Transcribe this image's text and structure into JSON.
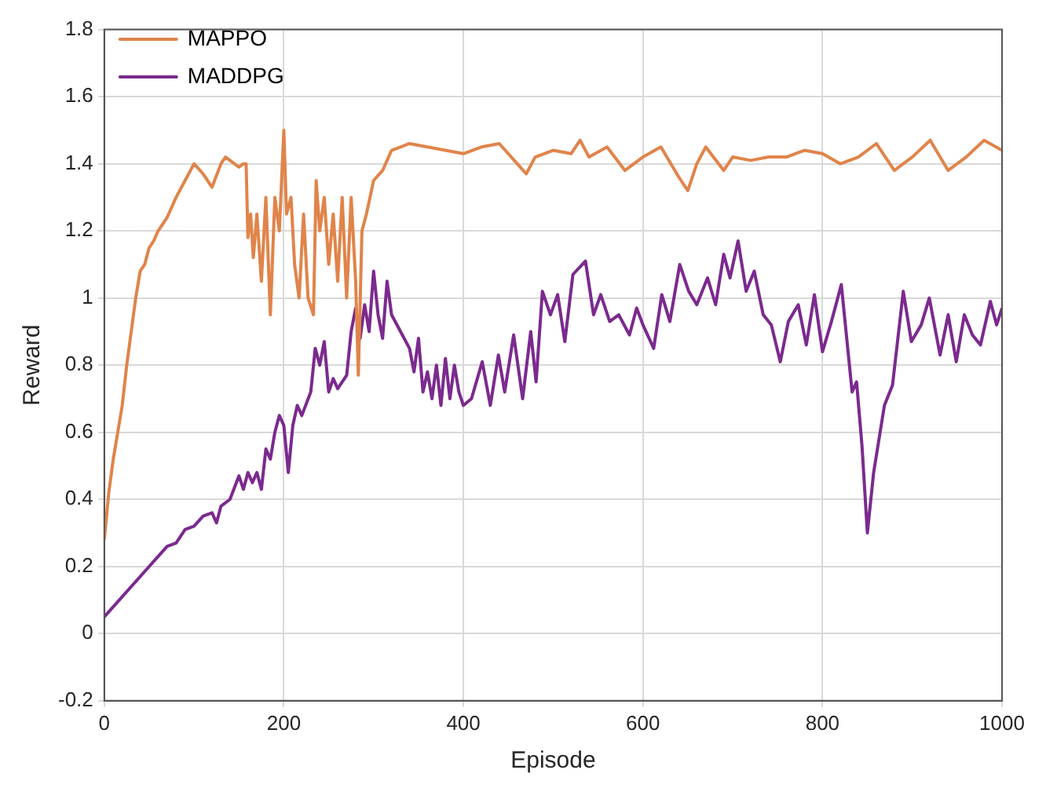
{
  "chart_data": {
    "type": "line",
    "xlabel": "Episode",
    "ylabel": "Reward",
    "xlim": [
      0,
      1000
    ],
    "xticks": [
      0,
      200,
      400,
      600,
      800,
      1000
    ],
    "ylim": [
      -0.2,
      1.8
    ],
    "yticks": [
      -0.2,
      0,
      0.2,
      0.4,
      0.6,
      0.8,
      1,
      1.2,
      1.4,
      1.6,
      1.8
    ],
    "grid": true,
    "legend": "top left",
    "marker": "none",
    "line_style": "solid",
    "series": [
      {
        "name": "MAPPO",
        "color": "#e0844a",
        "x": [
          0,
          5,
          10,
          15,
          20,
          25,
          30,
          35,
          40,
          45,
          50,
          55,
          60,
          70,
          80,
          90,
          100,
          110,
          120,
          130,
          135,
          145,
          150,
          155,
          158,
          160,
          163,
          166,
          170,
          175,
          180,
          185,
          190,
          195,
          200,
          203,
          208,
          212,
          217,
          222,
          227,
          233,
          236,
          240,
          245,
          250,
          255,
          260,
          265,
          270,
          275,
          280,
          283,
          287,
          292,
          300,
          310,
          320,
          340,
          360,
          380,
          400,
          420,
          440,
          460,
          470,
          480,
          500,
          520,
          530,
          540,
          560,
          580,
          600,
          620,
          640,
          650,
          660,
          670,
          690,
          700,
          720,
          740,
          760,
          780,
          800,
          820,
          840,
          860,
          880,
          900,
          920,
          940,
          960,
          980,
          1000
        ],
        "values": [
          0.28,
          0.42,
          0.52,
          0.6,
          0.68,
          0.8,
          0.9,
          1.0,
          1.08,
          1.1,
          1.15,
          1.17,
          1.2,
          1.24,
          1.3,
          1.35,
          1.4,
          1.37,
          1.33,
          1.4,
          1.42,
          1.4,
          1.39,
          1.4,
          1.4,
          1.18,
          1.25,
          1.12,
          1.25,
          1.05,
          1.3,
          0.95,
          1.3,
          1.2,
          1.5,
          1.25,
          1.3,
          1.1,
          1.0,
          1.25,
          1.0,
          0.95,
          1.35,
          1.2,
          1.3,
          1.1,
          1.25,
          1.05,
          1.3,
          1.0,
          1.3,
          1.05,
          0.77,
          1.2,
          1.25,
          1.35,
          1.38,
          1.44,
          1.46,
          1.45,
          1.44,
          1.43,
          1.45,
          1.46,
          1.4,
          1.37,
          1.42,
          1.44,
          1.43,
          1.47,
          1.42,
          1.45,
          1.38,
          1.42,
          1.45,
          1.36,
          1.32,
          1.4,
          1.45,
          1.38,
          1.42,
          1.41,
          1.42,
          1.42,
          1.44,
          1.43,
          1.4,
          1.42,
          1.46,
          1.38,
          1.42,
          1.47,
          1.38,
          1.42,
          1.47,
          1.44
        ]
      },
      {
        "name": "MADDPG",
        "color": "#7b2a8e",
        "x": [
          0,
          50,
          60,
          70,
          80,
          90,
          100,
          110,
          120,
          125,
          130,
          140,
          150,
          155,
          160,
          165,
          170,
          175,
          180,
          185,
          190,
          195,
          200,
          205,
          210,
          215,
          220,
          230,
          235,
          240,
          245,
          250,
          255,
          260,
          270,
          275,
          280,
          285,
          290,
          295,
          300,
          305,
          310,
          315,
          320,
          330,
          340,
          345,
          350,
          355,
          360,
          365,
          370,
          375,
          380,
          385,
          390,
          395,
          400,
          409,
          421,
          430,
          439,
          446,
          456,
          466,
          475,
          481,
          488,
          497,
          505,
          513,
          522,
          536,
          545,
          553,
          563,
          573,
          585,
          593,
          600,
          612,
          621,
          630,
          641,
          651,
          660,
          672,
          681,
          690,
          697,
          706,
          715,
          724,
          734,
          743,
          753,
          762,
          773,
          782,
          791,
          800,
          810,
          821,
          833,
          838,
          844,
          850,
          857,
          869,
          878,
          890,
          899,
          910,
          919,
          931,
          940,
          949,
          958,
          967,
          976,
          987,
          994,
          1000
        ],
        "values": [
          0.05,
          0.2,
          0.23,
          0.26,
          0.27,
          0.31,
          0.32,
          0.35,
          0.36,
          0.33,
          0.38,
          0.4,
          0.47,
          0.43,
          0.48,
          0.45,
          0.48,
          0.43,
          0.55,
          0.52,
          0.6,
          0.65,
          0.62,
          0.48,
          0.62,
          0.68,
          0.65,
          0.72,
          0.85,
          0.8,
          0.87,
          0.72,
          0.76,
          0.73,
          0.77,
          0.9,
          0.97,
          0.88,
          0.98,
          0.9,
          1.08,
          0.95,
          0.88,
          1.05,
          0.95,
          0.9,
          0.85,
          0.78,
          0.88,
          0.72,
          0.78,
          0.7,
          0.8,
          0.68,
          0.82,
          0.7,
          0.8,
          0.72,
          0.68,
          0.7,
          0.81,
          0.68,
          0.83,
          0.72,
          0.89,
          0.7,
          0.9,
          0.75,
          1.02,
          0.95,
          1.01,
          0.87,
          1.07,
          1.11,
          0.95,
          1.01,
          0.93,
          0.95,
          0.89,
          0.97,
          0.92,
          0.85,
          1.01,
          0.93,
          1.1,
          1.02,
          0.98,
          1.06,
          0.98,
          1.13,
          1.06,
          1.17,
          1.02,
          1.08,
          0.95,
          0.92,
          0.81,
          0.93,
          0.98,
          0.86,
          1.01,
          0.84,
          0.93,
          1.04,
          0.72,
          0.75,
          0.56,
          0.3,
          0.48,
          0.68,
          0.74,
          1.02,
          0.87,
          0.92,
          1.0,
          0.83,
          0.95,
          0.81,
          0.95,
          0.89,
          0.86,
          0.99,
          0.92,
          0.97
        ]
      }
    ]
  }
}
